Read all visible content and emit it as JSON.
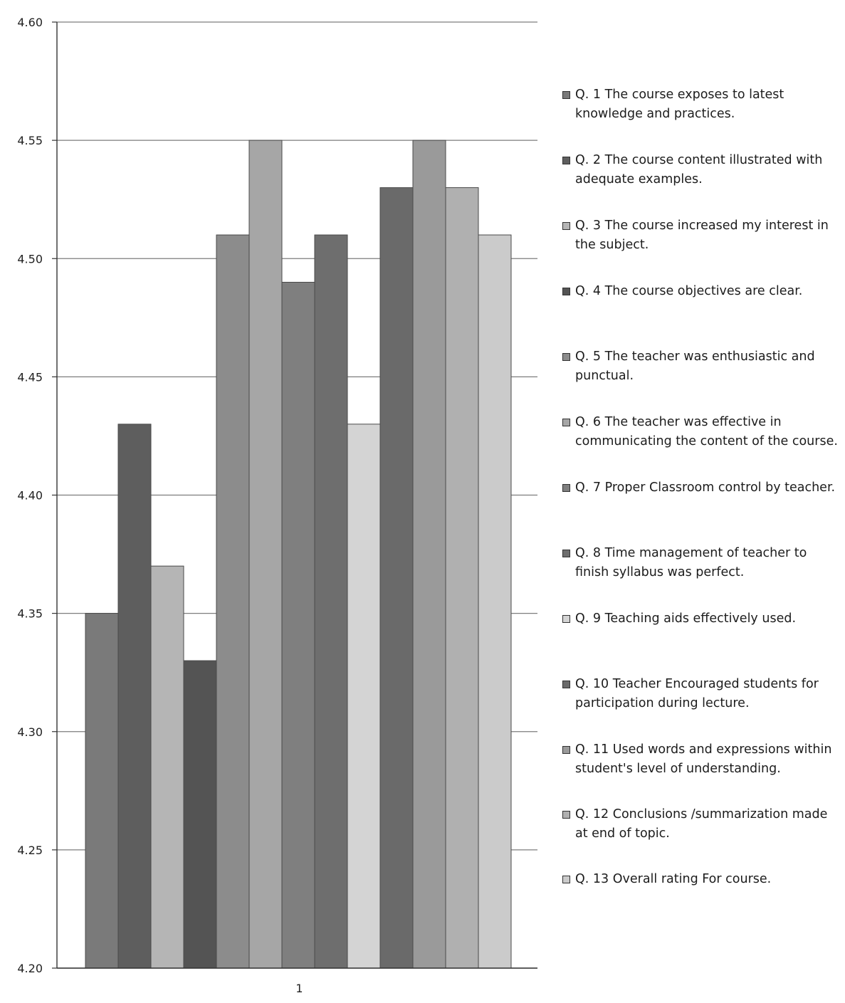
{
  "chart_data": {
    "type": "bar",
    "categories": [
      "1"
    ],
    "series": [
      {
        "name": "Q. 1 The course exposes to latest knowledge and practices.",
        "values": [
          4.35
        ],
        "color": "#7a7a7a"
      },
      {
        "name": "Q. 2 The course content illustrated with adequate examples.",
        "values": [
          4.43
        ],
        "color": "#5e5e5e"
      },
      {
        "name": "Q. 3 The course increased my interest in the subject.",
        "values": [
          4.37
        ],
        "color": "#b5b5b5"
      },
      {
        "name": "Q. 4 The course objectives are clear.",
        "values": [
          4.33
        ],
        "color": "#545454"
      },
      {
        "name": "Q. 5 The teacher was enthusiastic and punctual.",
        "values": [
          4.51
        ],
        "color": "#8c8c8c"
      },
      {
        "name": "Q. 6 The teacher was effective in communicating the content of the course.",
        "values": [
          4.55
        ],
        "color": "#a6a6a6"
      },
      {
        "name": "Q. 7 Proper Classroom control by teacher.",
        "values": [
          4.49
        ],
        "color": "#7f7f7f"
      },
      {
        "name": "Q. 8 Time management of teacher to finish syllabus was perfect.",
        "values": [
          4.51
        ],
        "color": "#6e6e6e"
      },
      {
        "name": "Q. 9 Teaching aids effectively used.",
        "values": [
          4.43
        ],
        "color": "#d4d4d4"
      },
      {
        "name": "Q. 10 Teacher Encouraged students for participation during lecture.",
        "values": [
          4.53
        ],
        "color": "#6a6a6a"
      },
      {
        "name": "Q. 11 Used words and expressions within student's level of understanding.",
        "values": [
          4.55
        ],
        "color": "#9a9a9a"
      },
      {
        "name": "Q. 12 Conclusions /summarization made at end of topic.",
        "values": [
          4.53
        ],
        "color": "#b0b0b0"
      },
      {
        "name": "Q. 13 Overall rating For course.",
        "values": [
          4.51
        ],
        "color": "#cbcbcb"
      }
    ],
    "ylim": [
      4.2,
      4.6
    ],
    "yticks": [
      "4.20",
      "4.25",
      "4.30",
      "4.35",
      "4.40",
      "4.45",
      "4.50",
      "4.55",
      "4.60"
    ],
    "title": "",
    "xlabel": "",
    "ylabel": "",
    "grid": true,
    "legend": "right"
  }
}
